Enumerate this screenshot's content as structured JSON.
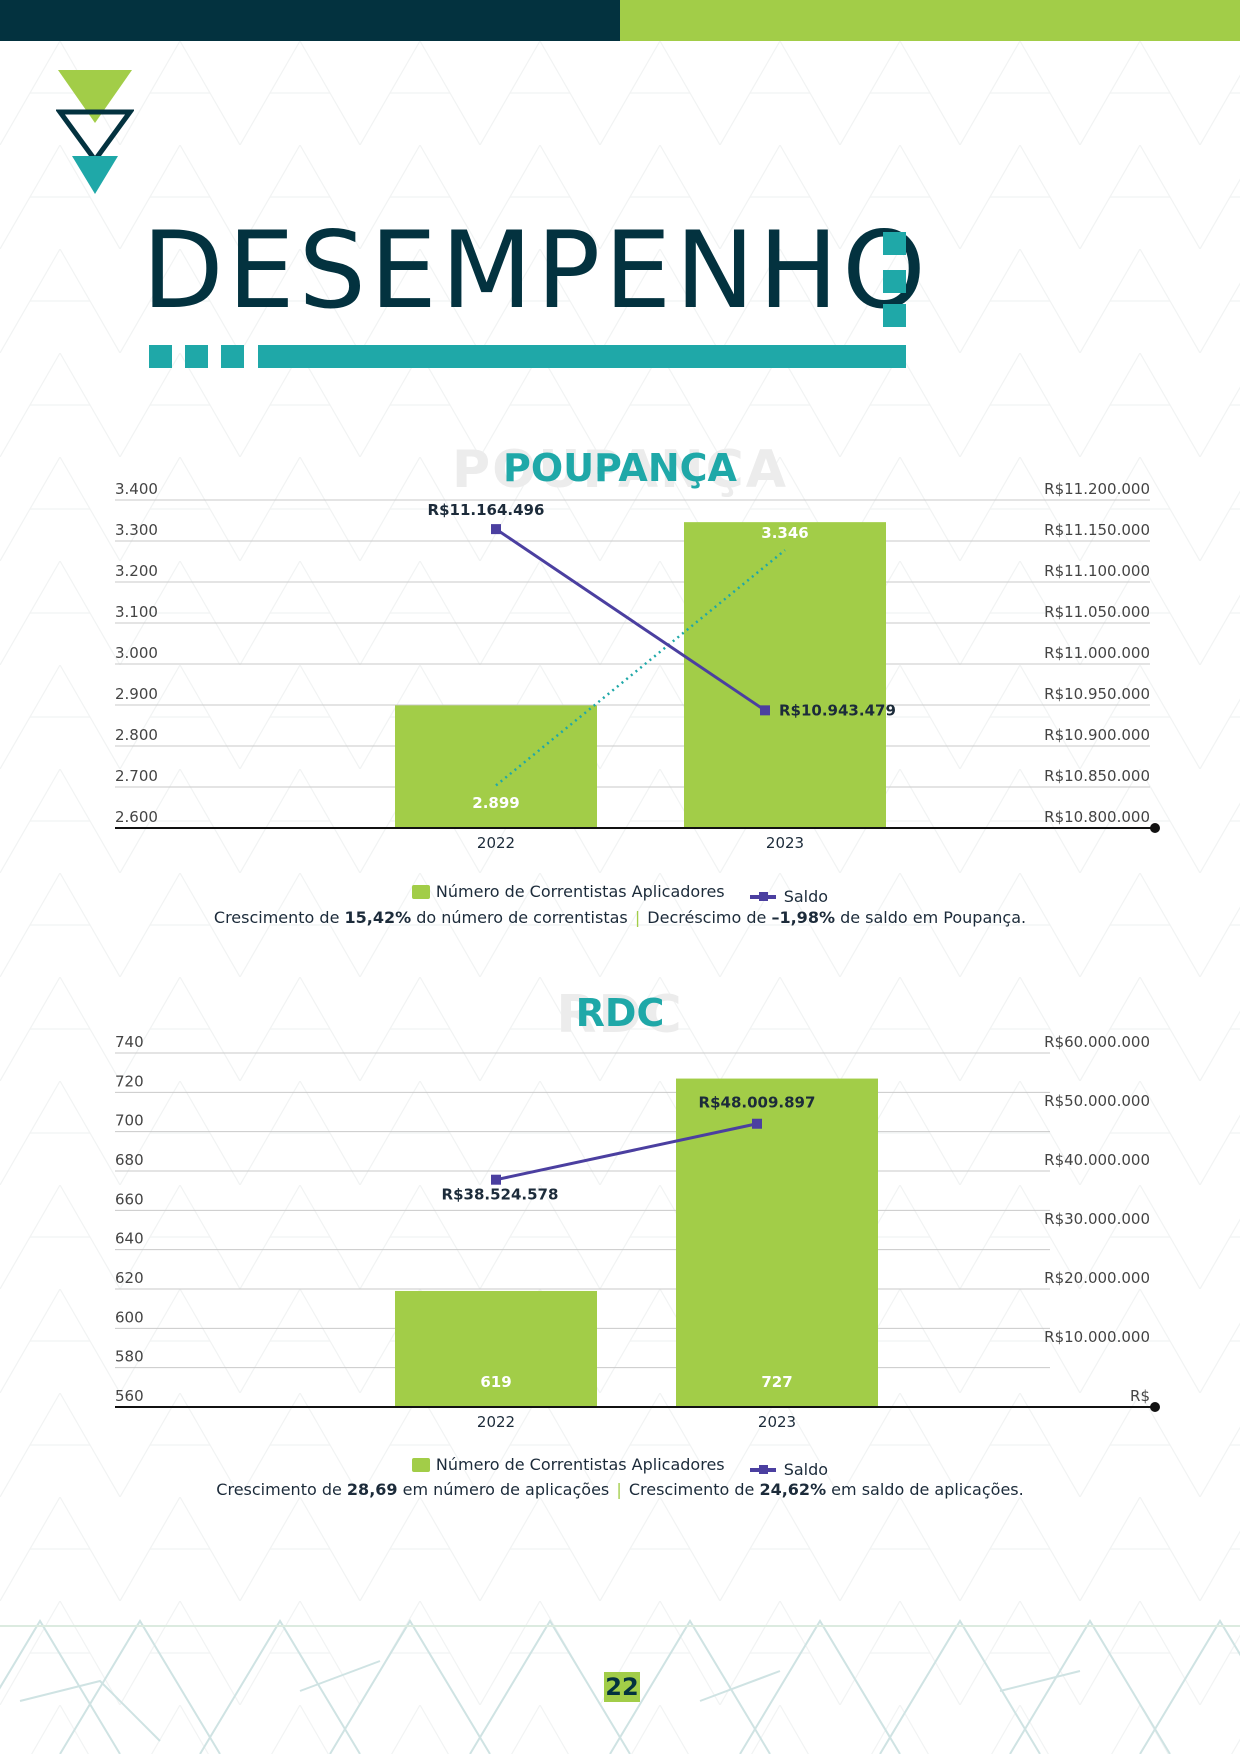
{
  "page": {
    "title": "DESEMPENHO",
    "page_number": "22",
    "colors": {
      "dark": "#03323f",
      "green": "#a2cd48",
      "teal": "#1fa8a8",
      "purple": "#4b3fa0"
    }
  },
  "chart_data": [
    {
      "type": "bar",
      "title": "POUPANÇA",
      "categories": [
        "2022",
        "2023"
      ],
      "series": [
        {
          "name": "Número de Correntistas Aplicadores",
          "type": "bar",
          "axis": "left",
          "values": [
            2899,
            3346
          ],
          "labels": [
            "2.899",
            "3.346"
          ]
        },
        {
          "name": "Saldo",
          "type": "line",
          "axis": "right",
          "values": [
            11164496,
            10943479
          ],
          "labels": [
            "R$11.164.496",
            "R$10.943.479"
          ]
        }
      ],
      "trendline": {
        "series": "Número de Correntistas Aplicadores",
        "style": "dotted",
        "color": "#1fa8a8"
      },
      "left_axis": {
        "ylim": [
          2600,
          3400
        ],
        "ticks": [
          "2.600",
          "2.700",
          "2.800",
          "2.900",
          "3.000",
          "3.100",
          "3.200",
          "3.300",
          "3.400"
        ]
      },
      "right_axis": {
        "ylim": [
          10800000,
          11200000
        ],
        "ticks": [
          "R$10.800.000",
          "R$10.850.000",
          "R$10.900.000",
          "R$10.950.000",
          "R$11.000.000",
          "R$11.050.000",
          "R$11.100.000",
          "R$11.150.000",
          "R$11.200.000"
        ]
      },
      "grid": true,
      "legend_position": "bottom",
      "caption": {
        "t1": "Crescimento de ",
        "b1": "15,42%",
        "t2": " do número de correntistas ",
        "sep": "|",
        "t3": " Decréscimo de ",
        "b2": "–1,98%",
        "t4": " de saldo em Poupança."
      }
    },
    {
      "type": "bar",
      "title": "RDC",
      "categories": [
        "2022",
        "2023"
      ],
      "series": [
        {
          "name": "Número de Correntistas Aplicadores",
          "type": "bar",
          "axis": "left",
          "values": [
            619,
            727
          ],
          "labels": [
            "619",
            "727"
          ]
        },
        {
          "name": "Saldo",
          "type": "line",
          "axis": "right",
          "values": [
            38524578,
            48009897
          ],
          "labels": [
            "R$38.524.578",
            "R$48.009.897"
          ]
        }
      ],
      "left_axis": {
        "ylim": [
          560,
          740
        ],
        "ticks": [
          "560",
          "580",
          "600",
          "620",
          "640",
          "660",
          "680",
          "700",
          "720",
          "740"
        ]
      },
      "right_axis": {
        "ylim": [
          0,
          60000000
        ],
        "ticks": [
          "R$",
          "R$10.000.000",
          "R$20.000.000",
          "R$30.000.000",
          "R$40.000.000",
          "R$50.000.000",
          "R$60.000.000"
        ]
      },
      "grid": true,
      "legend_position": "bottom",
      "caption": {
        "t1": "Crescimento de ",
        "b1": "28,69",
        "t2": " em número de aplicações ",
        "sep": "|",
        "t3": " Crescimento de ",
        "b2": "24,62%",
        "t4": " em saldo de aplicações."
      }
    }
  ]
}
